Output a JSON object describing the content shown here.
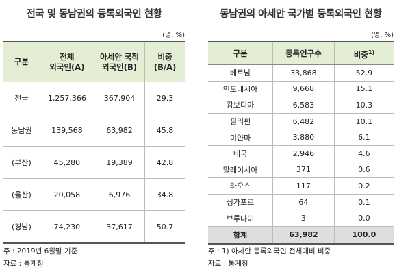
{
  "left": {
    "title": "전국 및 동남권의 등록외국인 현황",
    "unit": "(명, %)",
    "header": [
      [
        "구분"
      ],
      [
        "전체",
        "외국인(A)"
      ],
      [
        "아세안 국적",
        "외국인(B)"
      ],
      [
        "비중",
        "(B/A)"
      ]
    ],
    "rows": [
      [
        "전국",
        "1,257,366",
        "367,904",
        "29.3"
      ],
      [
        "동남권",
        "139,568",
        "63,982",
        "45.8"
      ],
      [
        "(부산)",
        "45,280",
        "19,389",
        "42.8"
      ],
      [
        "(울산)",
        "20,058",
        "6,976",
        "34.8"
      ],
      [
        "(경남)",
        "74,230",
        "37,617",
        "50.7"
      ]
    ],
    "notes": [
      "주 : 2019년 6월말 기준",
      "자료 : 통계청"
    ]
  },
  "right": {
    "title": "동남권의 아세안 국가별 등록외국인 현황",
    "unit": "(명, %)",
    "header": [
      "구분",
      "등록인구수",
      "비중"
    ],
    "header_note": "1)",
    "rows": [
      [
        "베트남",
        "33,868",
        "52.9"
      ],
      [
        "인도네시아",
        "9,668",
        "15.1"
      ],
      [
        "캄보디아",
        "6,583",
        "10.3"
      ],
      [
        "필리핀",
        "6,482",
        "10.1"
      ],
      [
        "미얀마",
        "3,880",
        "6.1"
      ],
      [
        "태국",
        "2,946",
        "4.6"
      ],
      [
        "말레이시아",
        "371",
        "0.6"
      ],
      [
        "라오스",
        "117",
        "0.2"
      ],
      [
        "싱가포르",
        "64",
        "0.1"
      ],
      [
        "브루나이",
        "3",
        "0.0"
      ]
    ],
    "total": [
      "합계",
      "63,982",
      "100.0"
    ],
    "notes": [
      "주 : 1) 아세안 등록외국인 전체대비 비중",
      "자료 : 통계청"
    ]
  }
}
